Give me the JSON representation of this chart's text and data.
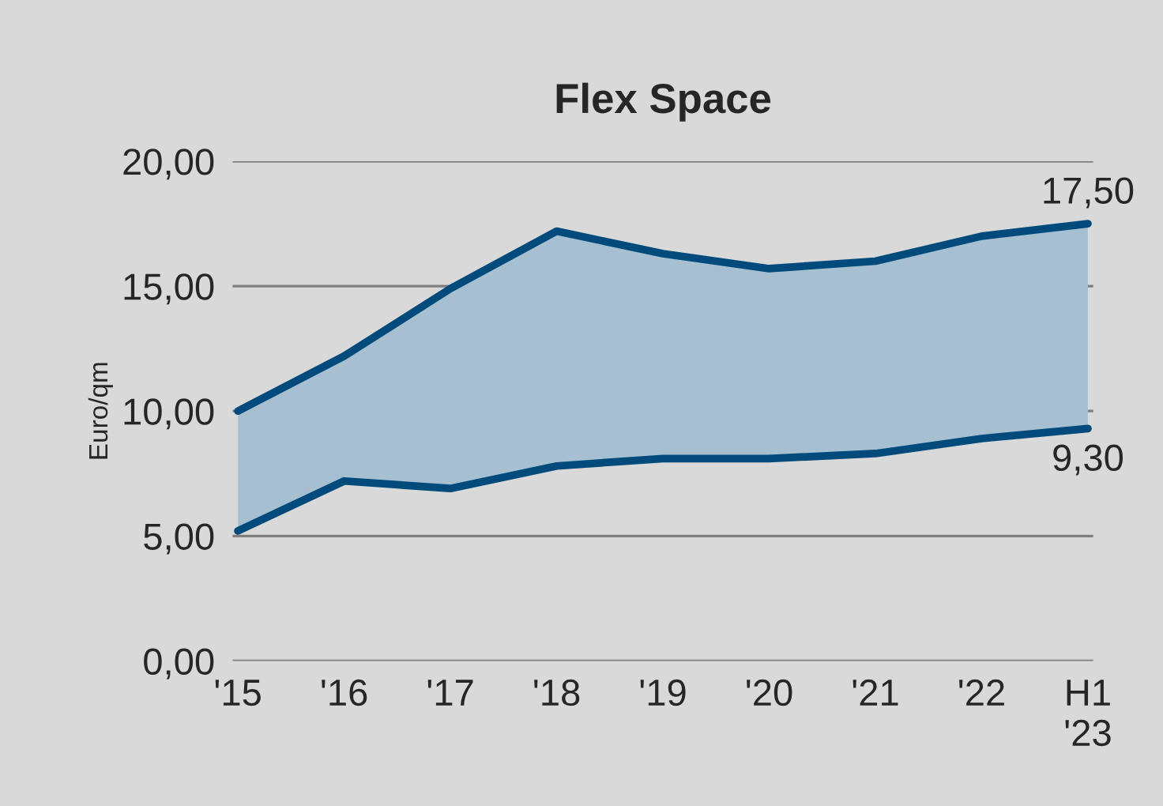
{
  "chart_data": {
    "type": "line",
    "title": "Flex Space",
    "ylabel": "Euro/qm",
    "categories": [
      "'15",
      "'16",
      "'17",
      "'18",
      "'19",
      "'20",
      "'21",
      "'22",
      "H1\n'23"
    ],
    "series": [
      {
        "color": "#004a7c",
        "values": [
          10.0,
          12.2,
          14.9,
          17.2,
          16.3,
          15.7,
          16.0,
          17.0,
          17.5
        ],
        "lower": [
          5.2,
          7.2,
          6.9,
          7.8,
          8.1,
          8.1,
          8.3,
          8.9,
          9.3
        ],
        "upper": [
          10.0,
          12.2,
          14.9,
          17.2,
          16.3,
          15.7,
          16.0,
          17.0,
          17.5
        ],
        "value_labels": [
          null,
          null,
          null,
          null,
          null,
          null,
          null,
          null,
          "17,50"
        ]
      },
      {
        "color": "#004a7c",
        "values": [
          5.2,
          7.2,
          6.9,
          7.8,
          8.1,
          8.1,
          8.3,
          8.9,
          9.3
        ],
        "value_labels": [
          null,
          null,
          null,
          null,
          null,
          null,
          null,
          null,
          "9,30"
        ]
      }
    ],
    "ylim": [
      0,
      20
    ],
    "yticks": [
      {
        "value": 0,
        "label": "0,00"
      },
      {
        "value": 5,
        "label": "5,00"
      },
      {
        "value": 10,
        "label": "10,00"
      },
      {
        "value": 15,
        "label": "15,00"
      },
      {
        "value": 20,
        "label": "20,00"
      }
    ],
    "grid": "y",
    "legend": false,
    "marker": "none",
    "line_style": "solid"
  }
}
